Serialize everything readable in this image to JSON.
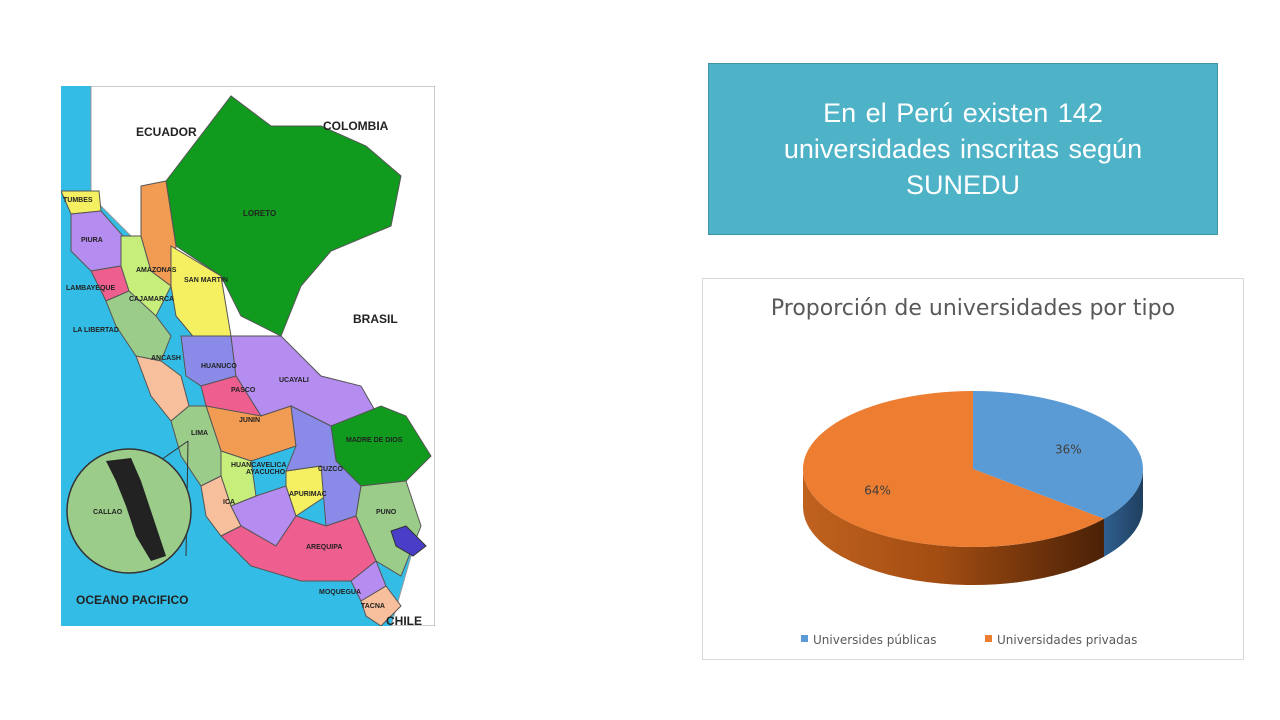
{
  "info_box": {
    "text": "En el Perú existen 142 universidades inscritas según SUNEDU"
  },
  "map": {
    "countries": [
      "ECUADOR",
      "COLOMBIA",
      "BRASIL",
      "CHILE"
    ],
    "ocean": "OCEANO PACIFICO",
    "inset": "CALLAO",
    "regions": [
      "TUMBES",
      "PIURA",
      "LAMBAYEQUE",
      "LA LIBERTAD",
      "CAJAMARCA",
      "AMAZONAS",
      "SAN MARTIN",
      "LORETO",
      "ANCASH",
      "HUANUCO",
      "UCAYALI",
      "PASCO",
      "JUNIN",
      "LIMA",
      "HUANCAVELICA",
      "ICA",
      "AYACUCHO",
      "APURIMAC",
      "CUZCO",
      "MADRE DE DIOS",
      "PUNO",
      "AREQUIPA",
      "MOQUEGUA",
      "TACNA"
    ],
    "colors": {
      "ocean": "#33bde6",
      "foreign_land": "#ffffff",
      "green": "#109a1e",
      "orange": "#f29b52",
      "purple": "#b58cf0",
      "pink": "#ee5e8f",
      "yellow": "#f5f061",
      "light_green": "#9ccc8a",
      "blue_purple": "#8a8ae8",
      "salmon": "#f7bf9b",
      "lime": "#c7ee7a"
    }
  },
  "chart_data": {
    "type": "pie",
    "title": "Proporción de universidades por tipo",
    "categories": [
      "Universides públicas",
      "Universidades privadas"
    ],
    "values": [
      36,
      64
    ],
    "data_labels": [
      "36%",
      "64%"
    ],
    "colors": [
      "#5b9bd5",
      "#ed7d31"
    ],
    "style": "3d",
    "legend_position": "bottom"
  }
}
